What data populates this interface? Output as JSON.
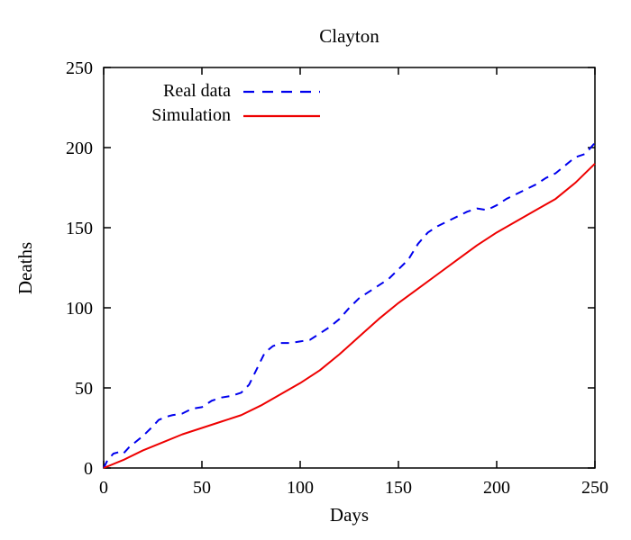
{
  "chart_data": {
    "type": "line",
    "title": "Clayton",
    "xlabel": "Days",
    "ylabel": "Deaths",
    "xlim": [
      0,
      250
    ],
    "ylim": [
      0,
      250
    ],
    "xticks": [
      0,
      50,
      100,
      150,
      200,
      250
    ],
    "yticks": [
      0,
      50,
      100,
      150,
      200,
      250
    ],
    "grid": false,
    "legend_position": "top-left-inside",
    "series": [
      {
        "name": "Real data",
        "color": "#0000ee",
        "style": "dashed",
        "x": [
          0,
          2,
          5,
          8,
          10,
          13,
          15,
          20,
          25,
          28,
          32,
          35,
          40,
          45,
          50,
          55,
          60,
          65,
          70,
          74,
          78,
          82,
          86,
          90,
          95,
          100,
          105,
          110,
          115,
          120,
          125,
          130,
          135,
          140,
          145,
          150,
          155,
          160,
          165,
          170,
          175,
          180,
          185,
          190,
          195,
          200,
          205,
          210,
          215,
          220,
          225,
          230,
          235,
          240,
          245,
          250
        ],
        "y": [
          0,
          5,
          9,
          10,
          9,
          13,
          15,
          20,
          26,
          30,
          32,
          33,
          34,
          37,
          38,
          42,
          44,
          45,
          47,
          52,
          62,
          72,
          76,
          78,
          78,
          79,
          80,
          84,
          88,
          93,
          100,
          106,
          110,
          114,
          118,
          124,
          130,
          140,
          147,
          151,
          154,
          157,
          160,
          162,
          161,
          164,
          168,
          171,
          174,
          177,
          181,
          184,
          189,
          194,
          196,
          203
        ]
      },
      {
        "name": "Simulation",
        "color": "#ee0000",
        "style": "solid",
        "x": [
          0,
          10,
          20,
          30,
          40,
          50,
          60,
          70,
          80,
          90,
          100,
          110,
          120,
          130,
          140,
          150,
          160,
          170,
          180,
          190,
          200,
          210,
          220,
          230,
          240,
          250
        ],
        "y": [
          0,
          5,
          11,
          16,
          21,
          25,
          29,
          33,
          39,
          46,
          53,
          61,
          71,
          82,
          93,
          103,
          112,
          121,
          130,
          139,
          147,
          154,
          161,
          168,
          178,
          190
        ]
      }
    ]
  }
}
